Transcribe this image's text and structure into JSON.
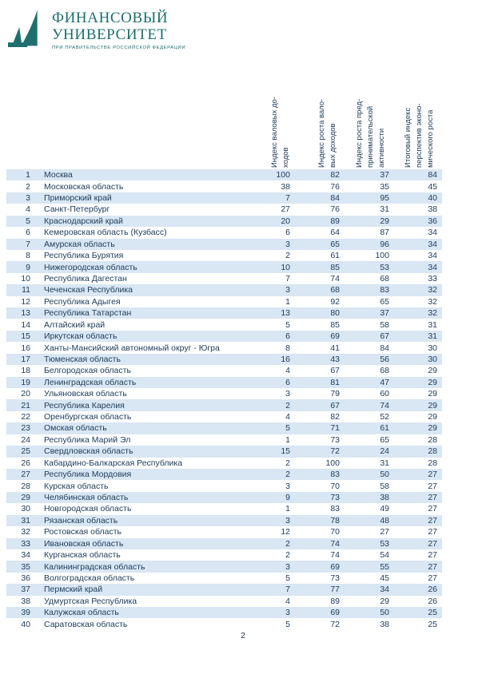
{
  "colors": {
    "accent": "#1e6f6e",
    "text": "#20405f",
    "row_stripe": "#d9e6f3"
  },
  "logo": {
    "title_line1": "ФИНАНСОВЫЙ",
    "title_line2": "УНИВЕРСИТЕТ",
    "subtitle": "ПРИ ПРАВИТЕЛЬСТВЕ РОССИЙСКОЙ ФЕДЕРАЦИИ"
  },
  "page_number": "2",
  "table": {
    "columns": [
      {
        "label": "Индекс валовых доходов",
        "lines": [
          "Индекс валовых до-",
          "ходов"
        ]
      },
      {
        "label": "Индекс роста валовых доходов",
        "lines": [
          "Индекс роста вало-",
          "вых доходов"
        ]
      },
      {
        "label": "Индекс роста предпринимательской активности",
        "lines": [
          "Индекс роста пред-",
          "принимательской",
          "активности"
        ]
      },
      {
        "label": "Итоговый индекс перспектив экономического роста",
        "lines": [
          "Итоговый индекс",
          "перспектив эконо-",
          "мического роста"
        ]
      }
    ],
    "rows": [
      {
        "rank": "1",
        "name": "Москва",
        "values": [
          "100",
          "82",
          "37",
          "84"
        ]
      },
      {
        "rank": "2",
        "name": "Московская область",
        "values": [
          "38",
          "76",
          "35",
          "45"
        ]
      },
      {
        "rank": "3",
        "name": "Приморский край",
        "values": [
          "7",
          "84",
          "95",
          "40"
        ]
      },
      {
        "rank": "4",
        "name": "Санкт-Петербург",
        "values": [
          "27",
          "76",
          "31",
          "38"
        ]
      },
      {
        "rank": "5",
        "name": "Краснодарский край",
        "values": [
          "20",
          "89",
          "29",
          "36"
        ]
      },
      {
        "rank": "6",
        "name": "Кемеровская область (Кузбасс)",
        "values": [
          "6",
          "64",
          "87",
          "34"
        ]
      },
      {
        "rank": "7",
        "name": "Амурская область",
        "values": [
          "3",
          "65",
          "96",
          "34"
        ]
      },
      {
        "rank": "8",
        "name": "Республика Бурятия",
        "values": [
          "2",
          "61",
          "100",
          "34"
        ]
      },
      {
        "rank": "9",
        "name": "Нижегородская область",
        "values": [
          "10",
          "85",
          "53",
          "34"
        ]
      },
      {
        "rank": "10",
        "name": "Республика Дагестан",
        "values": [
          "7",
          "74",
          "68",
          "33"
        ]
      },
      {
        "rank": "11",
        "name": "Чеченская Республика",
        "values": [
          "3",
          "68",
          "83",
          "32"
        ]
      },
      {
        "rank": "12",
        "name": "Республика Адыгея",
        "values": [
          "1",
          "92",
          "65",
          "32"
        ]
      },
      {
        "rank": "13",
        "name": "Республика Татарстан",
        "values": [
          "13",
          "80",
          "37",
          "32"
        ]
      },
      {
        "rank": "14",
        "name": "Алтайский край",
        "values": [
          "5",
          "85",
          "58",
          "31"
        ]
      },
      {
        "rank": "15",
        "name": "Иркутская область",
        "values": [
          "6",
          "69",
          "67",
          "31"
        ]
      },
      {
        "rank": "16",
        "name": "Ханты-Мансийский автономный округ - Югра",
        "values": [
          "8",
          "41",
          "84",
          "30"
        ]
      },
      {
        "rank": "17",
        "name": "Тюменская область",
        "values": [
          "16",
          "43",
          "56",
          "30"
        ]
      },
      {
        "rank": "18",
        "name": "Белгородская область",
        "values": [
          "4",
          "67",
          "68",
          "29"
        ]
      },
      {
        "rank": "19",
        "name": "Ленинградская область",
        "values": [
          "6",
          "81",
          "47",
          "29"
        ]
      },
      {
        "rank": "20",
        "name": "Ульяновская область",
        "values": [
          "3",
          "79",
          "60",
          "29"
        ]
      },
      {
        "rank": "21",
        "name": "Республика Карелия",
        "values": [
          "2",
          "67",
          "74",
          "29"
        ]
      },
      {
        "rank": "22",
        "name": "Оренбургская область",
        "values": [
          "4",
          "82",
          "52",
          "29"
        ]
      },
      {
        "rank": "23",
        "name": "Омская область",
        "values": [
          "5",
          "71",
          "61",
          "29"
        ]
      },
      {
        "rank": "24",
        "name": "Республика Марий Эл",
        "values": [
          "1",
          "73",
          "65",
          "28"
        ]
      },
      {
        "rank": "25",
        "name": "Свердловская область",
        "values": [
          "15",
          "72",
          "24",
          "28"
        ]
      },
      {
        "rank": "26",
        "name": "Кабардино-Балкарская Республика",
        "values": [
          "2",
          "100",
          "31",
          "28"
        ]
      },
      {
        "rank": "27",
        "name": "Республика Мордовия",
        "values": [
          "2",
          "83",
          "50",
          "27"
        ]
      },
      {
        "rank": "28",
        "name": "Курская область",
        "values": [
          "3",
          "70",
          "58",
          "27"
        ]
      },
      {
        "rank": "29",
        "name": "Челябинская область",
        "values": [
          "9",
          "73",
          "38",
          "27"
        ]
      },
      {
        "rank": "30",
        "name": "Новгородская область",
        "values": [
          "1",
          "83",
          "49",
          "27"
        ]
      },
      {
        "rank": "31",
        "name": "Рязанская область",
        "values": [
          "3",
          "78",
          "48",
          "27"
        ]
      },
      {
        "rank": "32",
        "name": "Ростовская область",
        "values": [
          "12",
          "70",
          "27",
          "27"
        ]
      },
      {
        "rank": "33",
        "name": "Ивановская область",
        "values": [
          "2",
          "74",
          "53",
          "27"
        ]
      },
      {
        "rank": "34",
        "name": "Курганская область",
        "values": [
          "2",
          "74",
          "54",
          "27"
        ]
      },
      {
        "rank": "35",
        "name": "Калининградская область",
        "values": [
          "3",
          "69",
          "55",
          "27"
        ]
      },
      {
        "rank": "36",
        "name": "Волгоградская область",
        "values": [
          "5",
          "73",
          "45",
          "27"
        ]
      },
      {
        "rank": "37",
        "name": "Пермский край",
        "values": [
          "7",
          "77",
          "34",
          "26"
        ]
      },
      {
        "rank": "38",
        "name": "Удмуртская Республика",
        "values": [
          "4",
          "89",
          "29",
          "26"
        ]
      },
      {
        "rank": "39",
        "name": "Калужская область",
        "values": [
          "3",
          "69",
          "50",
          "25"
        ]
      },
      {
        "rank": "40",
        "name": "Саратовская область",
        "values": [
          "5",
          "72",
          "38",
          "25"
        ]
      }
    ]
  }
}
